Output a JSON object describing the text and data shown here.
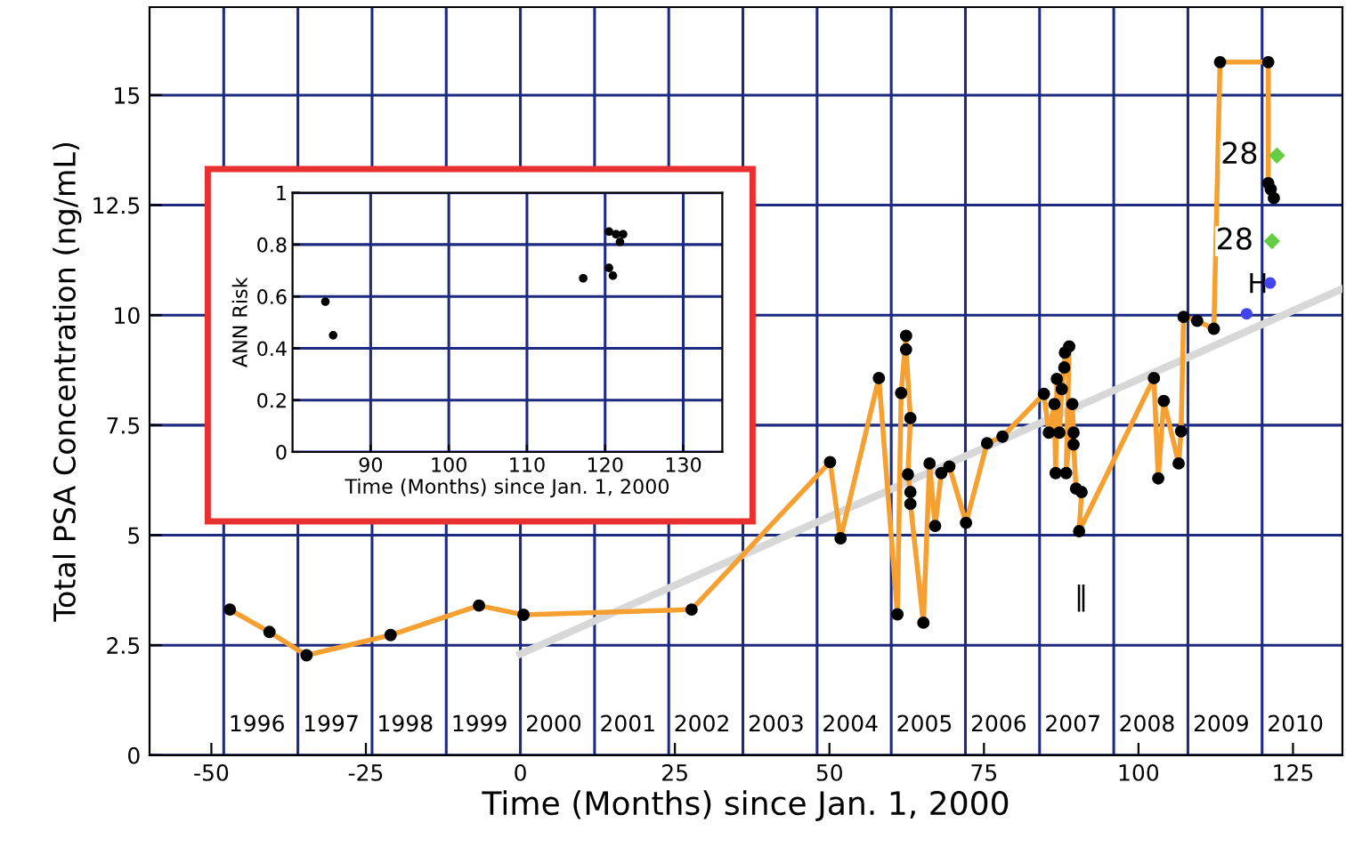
{
  "chart_data": [
    {
      "type": "line",
      "xlabel": "Time (Months) since Jan. 1, 2000",
      "ylabel": "Total PSA Concentration (ng/mL)",
      "xlim": [
        -60,
        133
      ],
      "ylim": [
        0,
        17
      ],
      "xticks": [
        -50,
        -25,
        0,
        25,
        50,
        75,
        100,
        125
      ],
      "yticks": [
        0,
        2.5,
        5,
        7.5,
        10,
        12.5,
        15
      ],
      "grid": "y",
      "ref_lines": [
        {
          "axis": "x",
          "value": -48,
          "color": "#1c2a80"
        },
        {
          "axis": "x",
          "value": -36,
          "color": "#1c2a80"
        },
        {
          "axis": "x",
          "value": -24,
          "color": "#1c2a80"
        },
        {
          "axis": "x",
          "value": -12,
          "color": "#1c2a80"
        },
        {
          "axis": "x",
          "value": 0,
          "color": "#1c2a80"
        },
        {
          "axis": "x",
          "value": 12,
          "color": "#1c2a80"
        },
        {
          "axis": "x",
          "value": 24,
          "color": "#1c2a80"
        },
        {
          "axis": "x",
          "value": 36,
          "color": "#1c2a80"
        },
        {
          "axis": "x",
          "value": 48,
          "color": "#1c2a80"
        },
        {
          "axis": "x",
          "value": 60,
          "color": "#1c2a80"
        },
        {
          "axis": "x",
          "value": 72,
          "color": "#1c2a80"
        },
        {
          "axis": "x",
          "value": 84,
          "color": "#1c2a80"
        },
        {
          "axis": "x",
          "value": 96,
          "color": "#1c2a80"
        },
        {
          "axis": "x",
          "value": 108,
          "color": "#1c2a80"
        },
        {
          "axis": "x",
          "value": 120,
          "color": "#1c2a80"
        }
      ],
      "series": [
        {
          "type": "line",
          "color": "#d8d8d8",
          "marker": "none",
          "x": [
            0,
            133
          ],
          "values": [
            2.3,
            10.6
          ]
        },
        {
          "type": "line",
          "color": "#f5a030",
          "marker": "circle",
          "x": [
            -47.0,
            -40.6,
            -34.6,
            -21.0,
            -6.7,
            0.5,
            27.7,
            50.1,
            51.8,
            58.0,
            61.0,
            61.6,
            62.4,
            62.4,
            63.1,
            62.7,
            63.1,
            63.1,
            65.2,
            66.2,
            67.1,
            68.1,
            69.4,
            72.1,
            75.5,
            78.0,
            84.7,
            85.5,
            86.4,
            86.6,
            86.8,
            87.2,
            87.6,
            88.0,
            88.1,
            88.8,
            88.3,
            89.3,
            89.5,
            89.5,
            89.9,
            90.8,
            90.4,
            102.5,
            103.2,
            104.1,
            106.5,
            106.9,
            107.3,
            109.5,
            112.2,
            113.2,
            121.0,
            121.0,
            121.4,
            121.9
          ],
          "values": [
            3.31,
            2.8,
            2.27,
            2.73,
            3.4,
            3.19,
            3.31,
            6.66,
            4.93,
            8.57,
            3.2,
            8.23,
            9.53,
            9.22,
            7.66,
            6.38,
            5.98,
            5.71,
            3.01,
            6.63,
            5.21,
            6.41,
            6.56,
            5.28,
            7.09,
            7.24,
            8.21,
            7.33,
            7.98,
            6.41,
            8.55,
            7.33,
            8.32,
            8.81,
            9.15,
            9.29,
            6.41,
            7.98,
            7.33,
            7.06,
            6.06,
            5.98,
            5.09,
            8.57,
            6.29,
            8.05,
            6.63,
            7.36,
            9.96,
            9.87,
            9.69,
            15.75,
            15.75,
            13.0,
            12.86,
            12.66
          ]
        },
        {
          "type": "scatter",
          "color": "#66cc44",
          "marker": "diamond",
          "x": [
            122.4,
            121.6
          ],
          "values": [
            13.63,
            11.68
          ]
        },
        {
          "type": "scatter",
          "color": "#4444ee",
          "marker": "circle",
          "x": [
            121.3,
            117.5
          ],
          "values": [
            10.73,
            10.03
          ]
        }
      ],
      "annotations": [
        {
          "text": "28",
          "x": 122.4,
          "y": 13.63
        },
        {
          "text": "28",
          "x": 121.6,
          "y": 11.68
        },
        "H",
        "‖",
        "1996",
        "1997",
        "1998",
        "1999",
        "2000",
        "2001",
        "2002",
        "2003",
        "2004",
        "2005",
        "2006",
        "2007",
        "2008",
        "2009",
        "2010"
      ]
    },
    {
      "type": "scatter",
      "xlabel": "Time (Months) since Jan. 1, 2000",
      "ylabel": "ANN Risk",
      "xlim": [
        80,
        135
      ],
      "ylim": [
        0,
        1
      ],
      "xticks": [
        90,
        100,
        110,
        120,
        130
      ],
      "yticks": [
        0,
        0.2,
        0.4,
        0.6,
        0.8,
        1
      ],
      "grid": true,
      "marker": "circle",
      "series": [
        {
          "color": "#000000",
          "x": [
            84.2,
            85.2,
            117.2,
            120.5,
            120.5,
            121.0,
            121.4,
            121.9,
            122.3
          ],
          "values": [
            0.58,
            0.45,
            0.67,
            0.85,
            0.71,
            0.68,
            0.84,
            0.81,
            0.84
          ]
        }
      ]
    }
  ]
}
